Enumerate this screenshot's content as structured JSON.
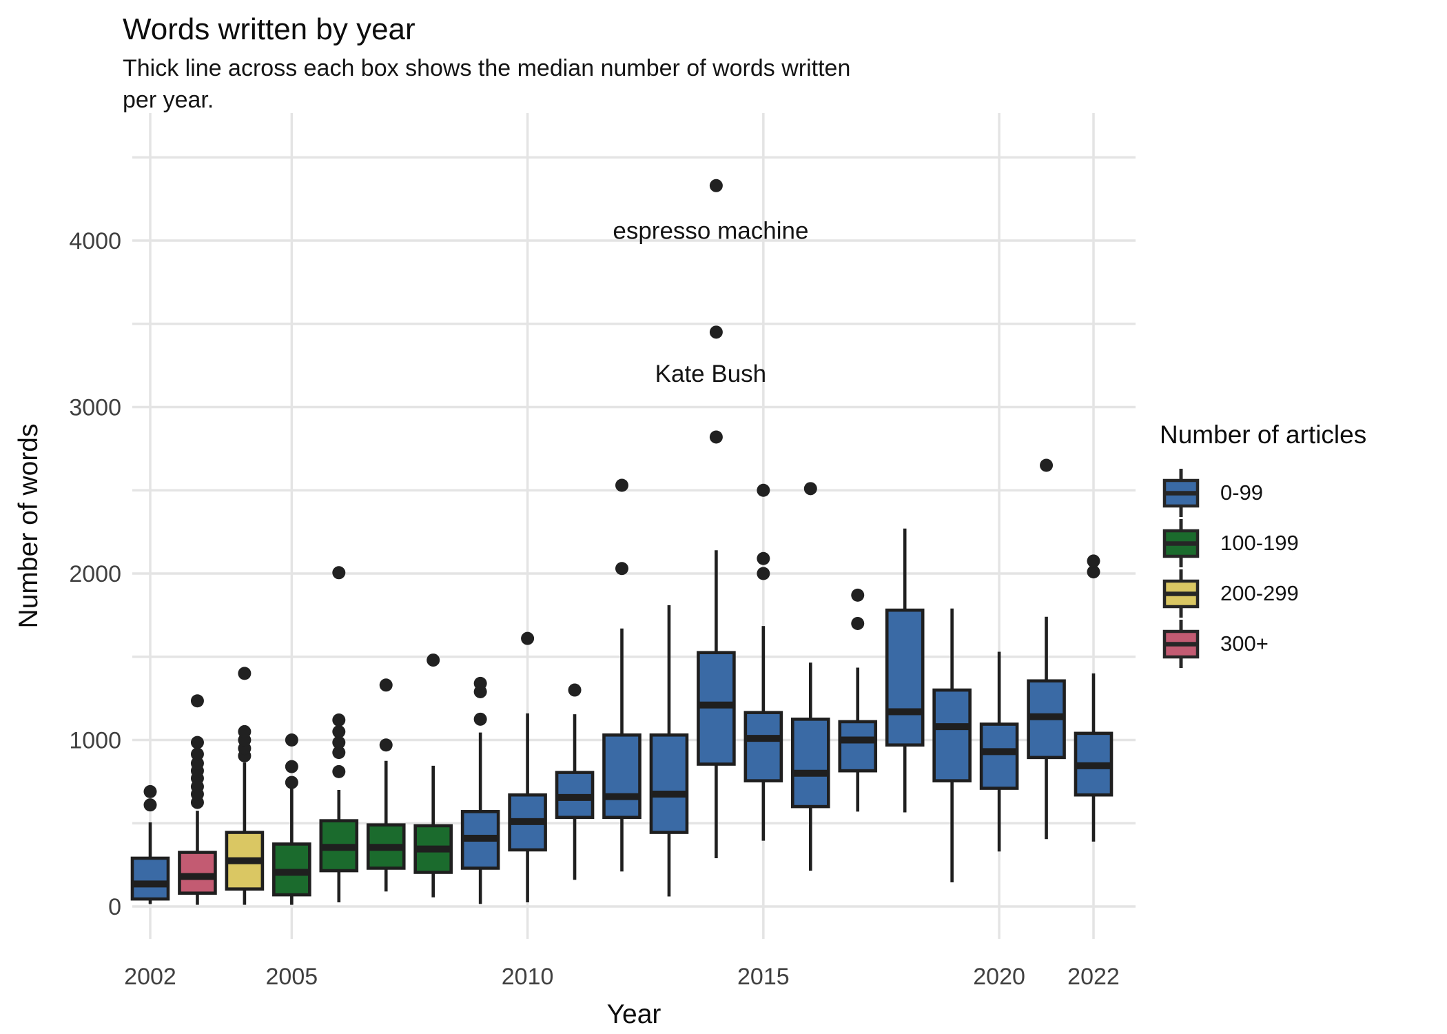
{
  "header": {
    "title": "Words written by year",
    "subtitle": "Thick line across each box shows the median number of words written\nper year."
  },
  "axes": {
    "x_title": "Year",
    "y_title": "Number of words"
  },
  "legend": {
    "title": "Number of articles",
    "items": [
      {
        "label": "0-99",
        "color": "#3A6AA5"
      },
      {
        "label": "100-199",
        "color": "#1B6B2D"
      },
      {
        "label": "200-299",
        "color": "#DAC763"
      },
      {
        "label": "300+",
        "color": "#C35B72"
      }
    ]
  },
  "chart_data": {
    "type": "boxplot",
    "title": "Words written by year",
    "subtitle": "Thick line across each box shows the median number of words written per year.",
    "xlabel": "Year",
    "ylabel": "Number of words",
    "x_ticks": [
      2002,
      2005,
      2010,
      2015,
      2020,
      2022
    ],
    "y_ticks": [
      0,
      1000,
      2000,
      3000,
      4000
    ],
    "y_grid_step": 500,
    "ylim": [
      0,
      4750
    ],
    "grid": true,
    "legend_position": "right",
    "legend_title": "Number of articles",
    "series": [
      {
        "year": 2002,
        "articles": "0-99",
        "low": 15,
        "q1": 45,
        "median": 135,
        "q3": 290,
        "high": 505,
        "outliers": [
          610,
          690
        ]
      },
      {
        "year": 2003,
        "articles": "300+",
        "low": 10,
        "q1": 80,
        "median": 180,
        "q3": 325,
        "high": 575,
        "outliers": [
          625,
          675,
          720,
          770,
          815,
          860,
          915,
          985,
          1235
        ]
      },
      {
        "year": 2004,
        "articles": "200-299",
        "low": 10,
        "q1": 105,
        "median": 275,
        "q3": 445,
        "high": 865,
        "outliers": [
          905,
          950,
          1000,
          1050,
          1400
        ]
      },
      {
        "year": 2005,
        "articles": "100-199",
        "low": 10,
        "q1": 70,
        "median": 205,
        "q3": 375,
        "high": 720,
        "outliers": [
          745,
          840,
          1000
        ]
      },
      {
        "year": 2006,
        "articles": "100-199",
        "low": 25,
        "q1": 215,
        "median": 355,
        "q3": 515,
        "high": 700,
        "outliers": [
          810,
          925,
          985,
          1050,
          1120,
          2005
        ]
      },
      {
        "year": 2007,
        "articles": "100-199",
        "low": 90,
        "q1": 230,
        "median": 355,
        "q3": 490,
        "high": 875,
        "outliers": [
          970,
          1330
        ]
      },
      {
        "year": 2008,
        "articles": "100-199",
        "low": 55,
        "q1": 205,
        "median": 345,
        "q3": 485,
        "high": 845,
        "outliers": [
          1480
        ]
      },
      {
        "year": 2009,
        "articles": "0-99",
        "low": 15,
        "q1": 230,
        "median": 410,
        "q3": 570,
        "high": 1045,
        "outliers": [
          1125,
          1290,
          1340
        ]
      },
      {
        "year": 2010,
        "articles": "0-99",
        "low": 25,
        "q1": 340,
        "median": 510,
        "q3": 670,
        "high": 1160,
        "outliers": [
          1610
        ]
      },
      {
        "year": 2011,
        "articles": "0-99",
        "low": 160,
        "q1": 535,
        "median": 655,
        "q3": 805,
        "high": 1155,
        "outliers": [
          1300
        ]
      },
      {
        "year": 2012,
        "articles": "0-99",
        "low": 210,
        "q1": 535,
        "median": 660,
        "q3": 1030,
        "high": 1670,
        "outliers": [
          2030,
          2530
        ]
      },
      {
        "year": 2013,
        "articles": "0-99",
        "low": 60,
        "q1": 445,
        "median": 675,
        "q3": 1030,
        "high": 1810,
        "outliers": []
      },
      {
        "year": 2014,
        "articles": "0-99",
        "low": 290,
        "q1": 855,
        "median": 1210,
        "q3": 1525,
        "high": 2140,
        "outliers": [
          2820,
          3450,
          4330
        ]
      },
      {
        "year": 2015,
        "articles": "0-99",
        "low": 395,
        "q1": 755,
        "median": 1010,
        "q3": 1165,
        "high": 1685,
        "outliers": [
          2000,
          2090,
          2500
        ]
      },
      {
        "year": 2016,
        "articles": "0-99",
        "low": 215,
        "q1": 600,
        "median": 800,
        "q3": 1125,
        "high": 1465,
        "outliers": [
          2510
        ]
      },
      {
        "year": 2017,
        "articles": "0-99",
        "low": 570,
        "q1": 815,
        "median": 1000,
        "q3": 1110,
        "high": 1435,
        "outliers": [
          1700,
          1870
        ]
      },
      {
        "year": 2018,
        "articles": "0-99",
        "low": 565,
        "q1": 970,
        "median": 1170,
        "q3": 1780,
        "high": 2270,
        "outliers": []
      },
      {
        "year": 2019,
        "articles": "0-99",
        "low": 145,
        "q1": 755,
        "median": 1080,
        "q3": 1300,
        "high": 1790,
        "outliers": []
      },
      {
        "year": 2020,
        "articles": "0-99",
        "low": 330,
        "q1": 710,
        "median": 930,
        "q3": 1095,
        "high": 1530,
        "outliers": []
      },
      {
        "year": 2021,
        "articles": "0-99",
        "low": 405,
        "q1": 895,
        "median": 1140,
        "q3": 1355,
        "high": 1740,
        "outliers": [
          2650
        ]
      },
      {
        "year": 2022,
        "articles": "0-99",
        "low": 390,
        "q1": 670,
        "median": 845,
        "q3": 1040,
        "high": 1400,
        "outliers": [
          2010,
          2075
        ]
      }
    ],
    "annotations": [
      {
        "text": "espresso machine",
        "year": 2014,
        "value": 4060,
        "point_value": 4330
      },
      {
        "text": "Kate Bush",
        "year": 2014,
        "value": 3200,
        "point_value": 3450
      }
    ]
  }
}
